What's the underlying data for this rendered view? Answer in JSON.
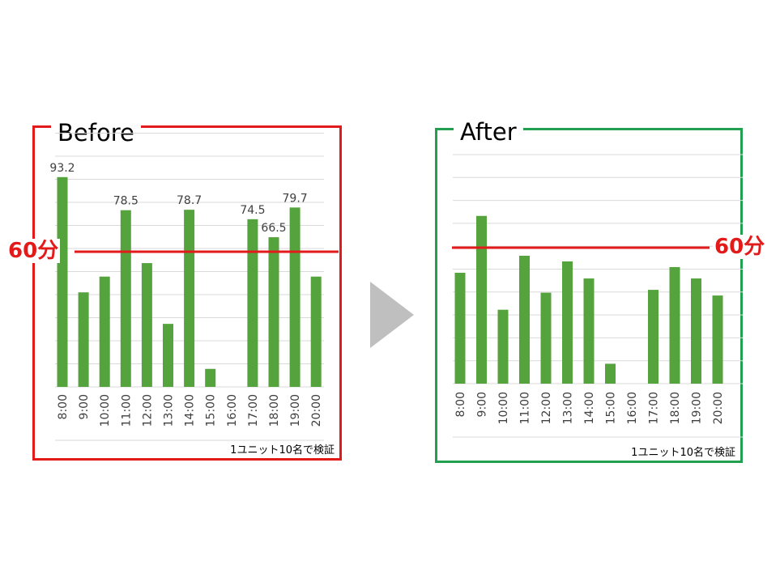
{
  "before": {
    "title": "Before",
    "note": "1ユニット10名で検証",
    "threshold_label": "60分"
  },
  "after": {
    "title": "After",
    "note": "1ユニット10名で検証",
    "threshold_label": "60分"
  },
  "colors": {
    "bar": "#55a33d",
    "before_frame": "#e21a1a",
    "after_frame": "#20a050",
    "threshold": "#e21a1a",
    "grid": "#d9d9d9",
    "arrow": "#bfbfbf"
  },
  "chart_data": [
    {
      "type": "bar",
      "title": "Before",
      "categories": [
        "8:00",
        "9:00",
        "10:00",
        "11:00",
        "12:00",
        "13:00",
        "14:00",
        "15:00",
        "16:00",
        "17:00",
        "18:00",
        "19:00",
        "20:00"
      ],
      "values": [
        93.2,
        42,
        49,
        78.5,
        55,
        28,
        78.7,
        8,
        0,
        74.5,
        66.5,
        79.7,
        49
      ],
      "data_labels": [
        "93.2",
        "",
        "",
        "78.5",
        "",
        "",
        "78.7",
        "",
        "",
        "74.5",
        "66.5",
        "79.7",
        ""
      ],
      "threshold": 60,
      "ylim": [
        0,
        105
      ],
      "grid": true
    },
    {
      "type": "bar",
      "title": "After",
      "categories": [
        "8:00",
        "9:00",
        "10:00",
        "11:00",
        "12:00",
        "13:00",
        "14:00",
        "15:00",
        "16:00",
        "17:00",
        "18:00",
        "19:00",
        "20:00"
      ],
      "values": [
        39,
        59,
        26,
        45,
        32,
        43,
        37,
        7,
        0,
        33,
        41,
        37,
        31
      ],
      "threshold": 60,
      "ylim": [
        0,
        80
      ],
      "grid": true
    }
  ]
}
